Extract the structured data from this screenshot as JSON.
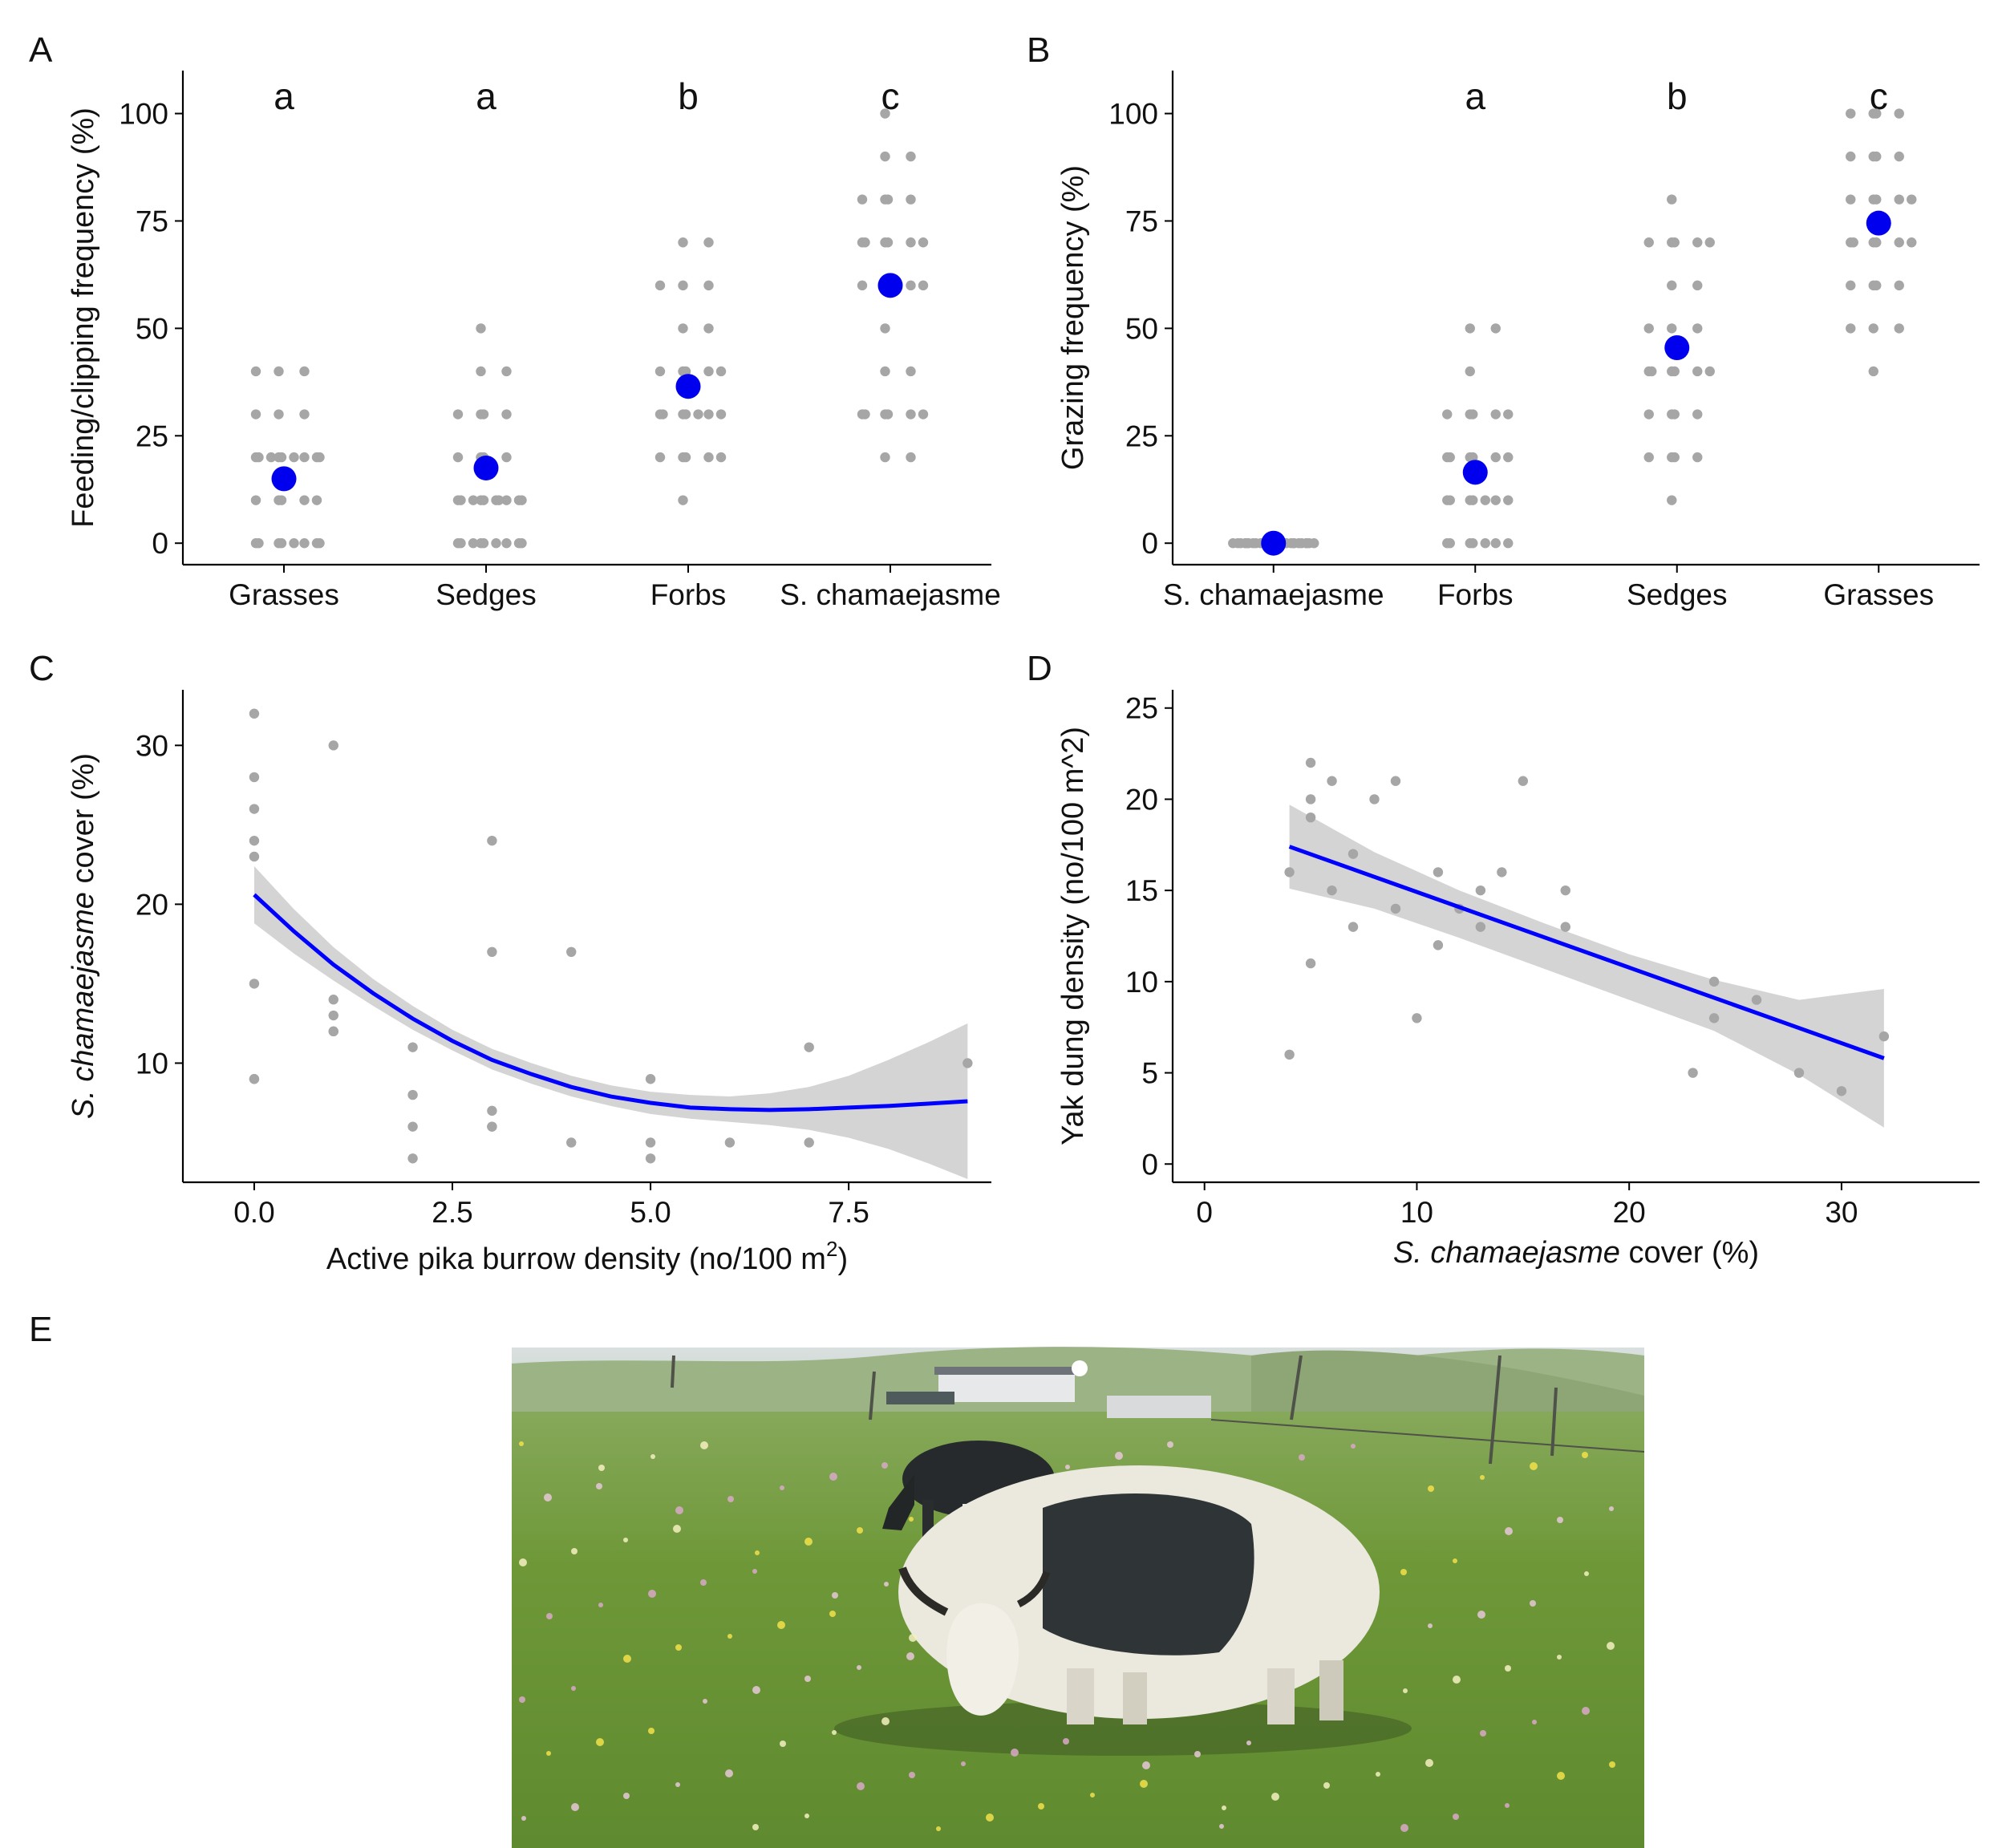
{
  "panels": {
    "A": {
      "tag": "A",
      "letters": [
        "a",
        "a",
        "b",
        "c"
      ]
    },
    "B": {
      "tag": "B",
      "letters": [
        "",
        "a",
        "b",
        "c"
      ]
    },
    "C": {
      "tag": "C"
    },
    "D": {
      "tag": "D"
    },
    "E": {
      "tag": "E",
      "photo": {
        "subject": "yaks grazing on alpine meadow",
        "sky": "#cfd8d8",
        "hills": "#8aa570",
        "grass": "#6f9a3a"
      }
    }
  },
  "colors": {
    "points": "#a6a6a6",
    "mean": "#0000ee",
    "fit_line": "#0000ff",
    "ci_band": "#d4d4d4"
  },
  "chart_data": [
    {
      "id": "A",
      "type": "scatter",
      "categories": [
        "Grasses",
        "Sedges",
        "Forbs",
        "S. chamaejasme"
      ],
      "ylabel": "Feeding/clipping frequency (%)",
      "xlabel": "",
      "ylim": [
        -5,
        110
      ],
      "yticks": [
        0,
        25,
        50,
        75,
        100
      ],
      "means": [
        15,
        17.5,
        36.5,
        60
      ],
      "points": [
        [
          0,
          0,
          0,
          0,
          0,
          0,
          0,
          0,
          10,
          10,
          10,
          10,
          10,
          20,
          20,
          20,
          20,
          20,
          20,
          20,
          20,
          20,
          30,
          30,
          30,
          40,
          40,
          40
        ],
        [
          0,
          0,
          0,
          0,
          0,
          0,
          0,
          0,
          0,
          10,
          10,
          10,
          10,
          10,
          10,
          10,
          10,
          10,
          10,
          20,
          20,
          20,
          20,
          30,
          30,
          30,
          30,
          40,
          40,
          50
        ],
        [
          10,
          20,
          20,
          20,
          20,
          20,
          30,
          30,
          30,
          30,
          30,
          30,
          30,
          40,
          40,
          40,
          40,
          40,
          50,
          50,
          60,
          60,
          60,
          70,
          70
        ],
        [
          20,
          20,
          30,
          30,
          30,
          30,
          30,
          30,
          40,
          40,
          50,
          60,
          60,
          60,
          60,
          60,
          70,
          70,
          70,
          70,
          70,
          70,
          80,
          80,
          80,
          80,
          90,
          90,
          100
        ]
      ]
    },
    {
      "id": "B",
      "type": "scatter",
      "categories": [
        "S. chamaejasme",
        "Forbs",
        "Sedges",
        "Grasses"
      ],
      "ylabel": "Grazing frequency (%)",
      "xlabel": "",
      "ylim": [
        -5,
        110
      ],
      "yticks": [
        0,
        25,
        50,
        75,
        100
      ],
      "means": [
        0,
        16.5,
        45.5,
        74.5
      ],
      "points": [
        [
          0,
          0,
          0,
          0,
          0,
          0,
          0,
          0,
          0,
          0,
          0,
          0,
          0,
          0,
          0,
          0,
          0,
          0,
          0,
          0,
          0,
          0,
          0,
          0,
          0,
          0,
          0,
          0
        ],
        [
          0,
          0,
          0,
          0,
          0,
          0,
          0,
          10,
          10,
          10,
          10,
          10,
          10,
          10,
          20,
          20,
          20,
          20,
          20,
          20,
          30,
          30,
          30,
          30,
          30,
          40,
          50,
          50
        ],
        [
          10,
          20,
          20,
          20,
          20,
          30,
          30,
          30,
          30,
          40,
          40,
          40,
          40,
          40,
          40,
          50,
          50,
          50,
          60,
          60,
          70,
          70,
          70,
          70,
          70,
          80
        ],
        [
          40,
          50,
          50,
          50,
          60,
          60,
          60,
          60,
          70,
          70,
          70,
          70,
          70,
          70,
          80,
          80,
          80,
          80,
          80,
          90,
          90,
          90,
          90,
          100,
          100,
          100,
          100
        ]
      ]
    },
    {
      "id": "C",
      "type": "scatter",
      "xlabel": "Active pika burrow density (no/100 m",
      "xlabel_sup": "2",
      "xlabel_end": ")",
      "ylabel_italic": "S. chamaejasme",
      "ylabel_rest": " cover (%)",
      "xlim": [
        -0.9,
        9.3
      ],
      "ylim": [
        2.5,
        33.5
      ],
      "xticks": [
        "0.0",
        "2.5",
        "5.0",
        "7.5"
      ],
      "yticks": [
        10,
        20,
        30
      ],
      "x": [
        0,
        0,
        0,
        0,
        0,
        0,
        0,
        0,
        1,
        1,
        1,
        1,
        1,
        2,
        2,
        2,
        2,
        3,
        3,
        3,
        3,
        3,
        4,
        4,
        5,
        5,
        5,
        6,
        7,
        7,
        9
      ],
      "y": [
        32,
        28,
        26,
        24,
        23,
        15,
        9,
        9,
        30,
        14,
        13,
        12,
        12,
        11,
        8,
        6,
        4,
        24,
        17,
        7,
        6,
        6,
        17,
        5,
        9,
        5,
        4,
        5,
        11,
        5,
        10
      ],
      "fit": {
        "x": [
          0,
          0.5,
          1,
          1.5,
          2,
          2.5,
          3,
          3.5,
          4,
          4.5,
          5,
          5.5,
          6,
          6.5,
          7,
          7.5,
          8,
          8.5,
          9
        ],
        "y": [
          20.6,
          18.3,
          16.2,
          14.4,
          12.8,
          11.4,
          10.2,
          9.3,
          8.5,
          7.9,
          7.5,
          7.2,
          7.1,
          7.05,
          7.1,
          7.2,
          7.3,
          7.45,
          7.6
        ],
        "ci_lower": [
          18.8,
          16.9,
          15.2,
          13.6,
          12.1,
          10.8,
          9.6,
          8.7,
          7.9,
          7.3,
          6.8,
          6.5,
          6.3,
          6.1,
          5.8,
          5.3,
          4.6,
          3.7,
          2.7
        ],
        "ci_upper": [
          22.4,
          19.7,
          17.3,
          15.3,
          13.6,
          12.1,
          10.9,
          10.0,
          9.2,
          8.6,
          8.2,
          8.0,
          7.9,
          8.1,
          8.5,
          9.2,
          10.2,
          11.3,
          12.5
        ]
      }
    },
    {
      "id": "D",
      "type": "scatter",
      "xlabel_italic": "S. chamaejasme",
      "xlabel_rest": " cover (%)",
      "ylabel": "Yak dung density (no/100 m^2)",
      "xlim": [
        -1.5,
        36.5
      ],
      "ylim": [
        -1,
        26
      ],
      "xticks": [
        0,
        10,
        20,
        30
      ],
      "yticks": [
        0,
        5,
        10,
        15,
        20,
        25
      ],
      "x": [
        4,
        4,
        5,
        5,
        5,
        5,
        6,
        6,
        7,
        7,
        8,
        9,
        9,
        10,
        11,
        11,
        12,
        13,
        13,
        14,
        15,
        17,
        17,
        23,
        24,
        24,
        26,
        28,
        30,
        32
      ],
      "y": [
        16,
        6,
        22,
        20,
        19,
        11,
        21,
        15,
        17,
        13,
        20,
        21,
        14,
        8,
        16,
        12,
        14,
        15,
        13,
        16,
        21,
        15,
        13,
        5,
        10,
        8,
        9,
        5,
        4,
        7
      ],
      "fit": {
        "x": [
          4,
          32
        ],
        "y": [
          17.4,
          5.8
        ],
        "ci_x": [
          4,
          8,
          12,
          16,
          20,
          24,
          28,
          32
        ],
        "ci_lower": [
          15.1,
          14.0,
          12.4,
          10.7,
          9.0,
          7.3,
          4.9,
          2.0
        ],
        "ci_upper": [
          19.7,
          17.1,
          15.0,
          13.2,
          11.5,
          10.1,
          9.0,
          9.6
        ]
      }
    }
  ]
}
